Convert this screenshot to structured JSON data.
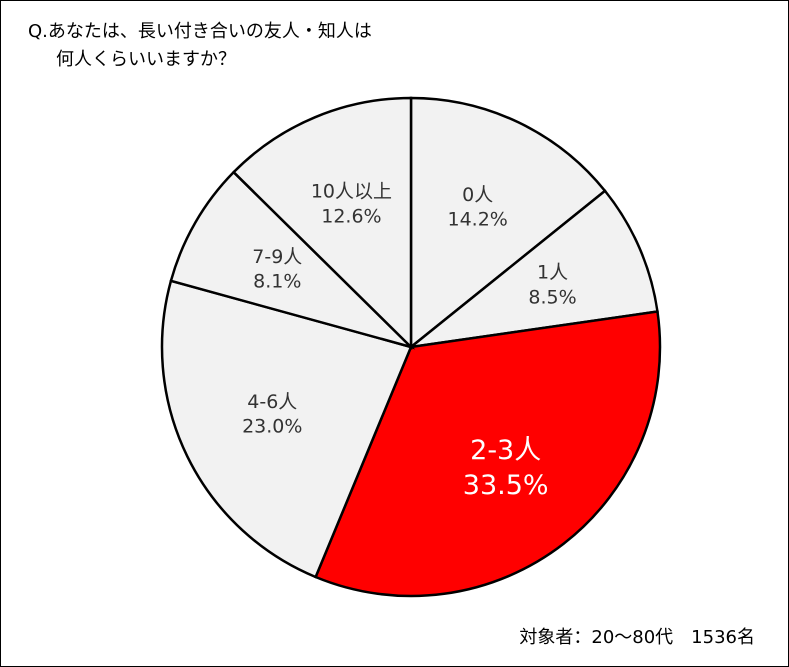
{
  "chart_data": {
    "type": "pie",
    "title": [
      "Q.あなたは、長い付き合いの友人・知人は",
      "何人くらいいますか？"
    ],
    "categories": [
      "0人",
      "1人",
      "2-3人",
      "4-6人",
      "7-9人",
      "10人以上"
    ],
    "values": [
      14.2,
      8.5,
      33.5,
      23.0,
      8.1,
      12.6
    ],
    "value_labels": [
      "14.2%",
      "8.5%",
      "33.5%",
      "23.0%",
      "8.1%",
      "12.6%"
    ],
    "colors": [
      "#f2f2f2",
      "#f2f2f2",
      "#ff0000",
      "#f2f2f2",
      "#f2f2f2",
      "#f2f2f2"
    ],
    "note": "対象者：20～80代　1536名"
  }
}
